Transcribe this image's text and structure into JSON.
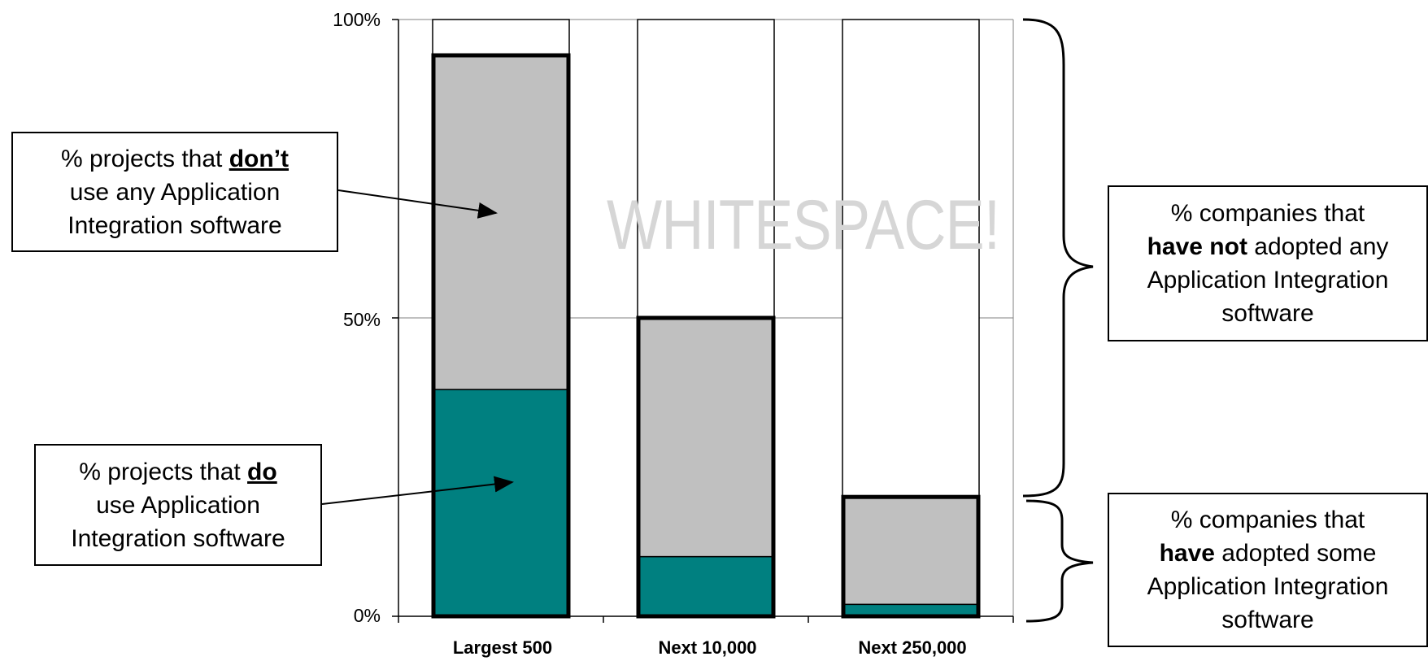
{
  "chart_data": {
    "type": "bar",
    "stacked": true,
    "categories": [
      "Largest 500",
      "Next 10,000",
      "Next 250,000"
    ],
    "series": [
      {
        "values": [
          38,
          10,
          2
        ],
        "color": "#008080"
      },
      {
        "values": [
          56,
          40,
          18
        ],
        "color": "#c0c0c0"
      },
      {
        "values": [
          6,
          50,
          80
        ],
        "color": "#ffffff"
      }
    ],
    "adopted_total": [
      94,
      50,
      20
    ],
    "ylim": [
      0,
      100
    ],
    "yticks": [
      "0%",
      "50%",
      "100%"
    ],
    "grid": true,
    "watermark": "WHITESPACE!"
  },
  "callouts": {
    "dont": {
      "prefix": "% projects that ",
      "emph": "don’t",
      "rest": "use any Application Integration software"
    },
    "do": {
      "prefix": "% projects that ",
      "emph": "do",
      "rest": "use Application Integration software"
    },
    "have_not": {
      "prefix": "% companies that",
      "emph": "have not",
      "rest": " adopted any Application Integration software"
    },
    "have": {
      "prefix": "% companies that",
      "emph": "have",
      "rest": " adopted some Application Integration software"
    }
  }
}
